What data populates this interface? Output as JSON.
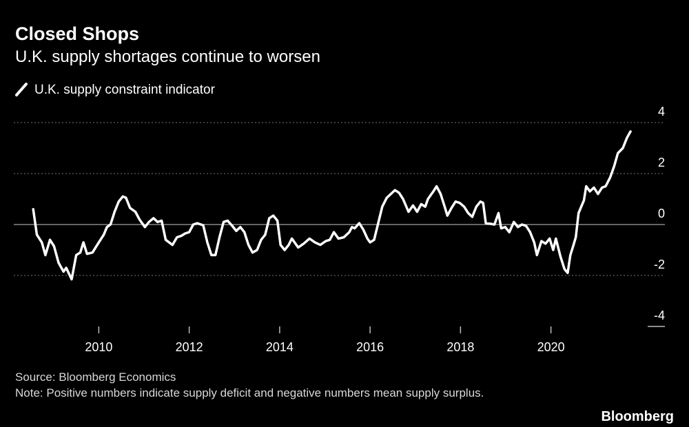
{
  "chart_data": {
    "type": "line",
    "title": "Closed Shops",
    "subtitle": "U.K. supply shortages continue to worsen",
    "source": "Source: Bloomberg Economics",
    "note": "Note: Positive numbers indicate supply deficit and negative numbers mean supply surplus.",
    "brand": "Bloomberg",
    "x": [
      2008.55,
      2008.63,
      2008.74,
      2008.82,
      2008.92,
      2009.01,
      2009.11,
      2009.22,
      2009.28,
      2009.4,
      2009.5,
      2009.59,
      2009.66,
      2009.74,
      2009.86,
      2010.0,
      2010.11,
      2010.18,
      2010.26,
      2010.35,
      2010.44,
      2010.53,
      2010.6,
      2010.69,
      2010.81,
      2010.9,
      2011.02,
      2011.11,
      2011.21,
      2011.3,
      2011.39,
      2011.48,
      2011.63,
      2011.73,
      2011.82,
      2011.91,
      2012.0,
      2012.09,
      2012.18,
      2012.31,
      2012.4,
      2012.49,
      2012.58,
      2012.67,
      2012.76,
      2012.85,
      2012.95,
      2013.04,
      2013.13,
      2013.22,
      2013.31,
      2013.4,
      2013.5,
      2013.59,
      2013.68,
      2013.77,
      2013.86,
      2013.95,
      2014.02,
      2014.11,
      2014.2,
      2014.27,
      2014.41,
      2014.53,
      2014.66,
      2014.78,
      2014.9,
      2015.02,
      2015.11,
      2015.2,
      2015.3,
      2015.42,
      2015.54,
      2015.6,
      2015.66,
      2015.76,
      2015.85,
      2015.94,
      2016.0,
      2016.09,
      2016.18,
      2016.27,
      2016.37,
      2016.46,
      2016.55,
      2016.64,
      2016.73,
      2016.85,
      2016.95,
      2017.04,
      2017.13,
      2017.22,
      2017.28,
      2017.4,
      2017.47,
      2017.56,
      2017.65,
      2017.71,
      2017.8,
      2017.89,
      2017.98,
      2018.08,
      2018.17,
      2018.26,
      2018.35,
      2018.44,
      2018.5,
      2018.56,
      2018.66,
      2018.75,
      2018.84,
      2018.9,
      2018.99,
      2019.08,
      2019.18,
      2019.27,
      2019.36,
      2019.45,
      2019.54,
      2019.63,
      2019.69,
      2019.79,
      2019.88,
      2019.97,
      2020.05,
      2020.11,
      2020.21,
      2020.3,
      2020.37,
      2020.43,
      2020.5,
      2020.55,
      2020.61,
      2020.67,
      2020.73,
      2020.78,
      2020.86,
      2020.95,
      2021.04,
      2021.13,
      2021.21,
      2021.31,
      2021.4,
      2021.48,
      2021.59,
      2021.68,
      2021.76
    ],
    "series": [
      {
        "name": "U.K. supply constraint indicator",
        "color": "#ffffff",
        "values": [
          0.6,
          -0.4,
          -0.7,
          -1.2,
          -0.6,
          -0.85,
          -1.5,
          -1.85,
          -1.7,
          -2.15,
          -1.2,
          -1.1,
          -0.7,
          -1.15,
          -1.1,
          -0.7,
          -0.4,
          -0.1,
          0,
          0.5,
          0.9,
          1.1,
          1.05,
          0.65,
          0.5,
          0.2,
          -0.1,
          0.1,
          0.25,
          0.1,
          0.15,
          -0.6,
          -0.8,
          -0.5,
          -0.45,
          -0.35,
          -0.3,
          0,
          0.05,
          -0.03,
          -0.7,
          -1.2,
          -1.2,
          -0.5,
          0.1,
          0.15,
          -0.05,
          -0.25,
          -0.1,
          -0.3,
          -0.8,
          -1.1,
          -1.0,
          -0.6,
          -0.4,
          0.25,
          0.35,
          0.15,
          -0.8,
          -1.0,
          -0.8,
          -0.55,
          -0.9,
          -0.75,
          -0.55,
          -0.7,
          -0.8,
          -0.65,
          -0.6,
          -0.3,
          -0.55,
          -0.5,
          -0.3,
          -0.1,
          -0.15,
          0.05,
          -0.2,
          -0.55,
          -0.7,
          -0.6,
          0.05,
          0.7,
          1.05,
          1.2,
          1.35,
          1.25,
          1.0,
          0.5,
          0.75,
          0.5,
          0.8,
          0.7,
          1.0,
          1.3,
          1.5,
          1.2,
          0.7,
          0.35,
          0.65,
          0.9,
          0.85,
          0.7,
          0.45,
          0.3,
          0.7,
          0.9,
          0.85,
          0.05,
          0.03,
          0,
          0.45,
          -0.15,
          -0.1,
          -0.3,
          0.1,
          -0.1,
          0,
          -0.05,
          -0.3,
          -0.7,
          -1.2,
          -0.65,
          -0.75,
          -0.55,
          -1.0,
          -0.55,
          -1.25,
          -1.75,
          -1.9,
          -1.2,
          -0.8,
          -0.5,
          0.45,
          0.7,
          0.95,
          1.5,
          1.3,
          1.45,
          1.2,
          1.45,
          1.5,
          1.85,
          2.3,
          2.8,
          3.0,
          3.4,
          3.65
        ]
      }
    ],
    "xlim": [
      2008.12,
      2022.52
    ],
    "xticks": [
      2010,
      2012,
      2014,
      2016,
      2018,
      2020
    ],
    "ylim": [
      -4,
      4
    ],
    "yticks": [
      4,
      2,
      0,
      -2,
      -4
    ],
    "grid": true
  }
}
